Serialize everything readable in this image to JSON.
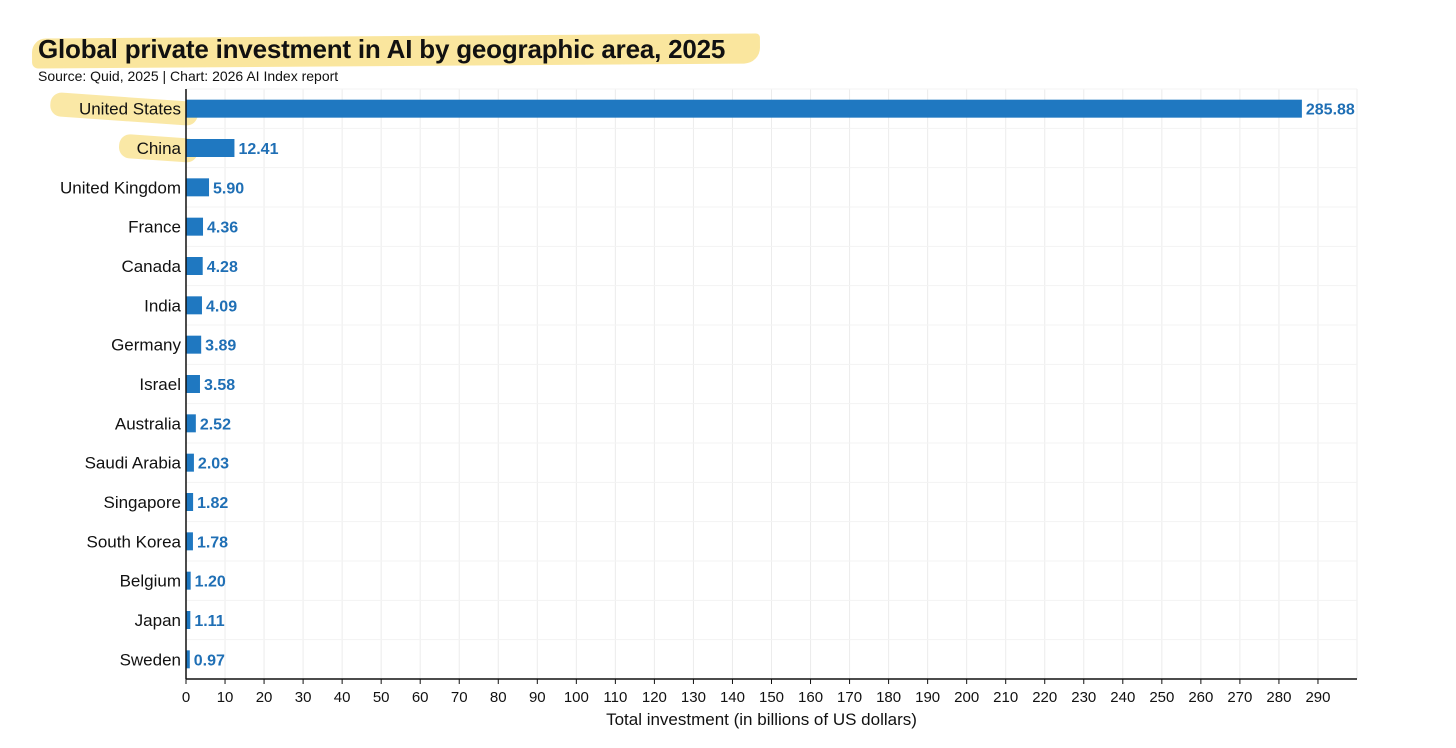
{
  "header": {
    "title": "Global private investment in AI by geographic area, 2025",
    "subtitle": "Source: Quid, 2025 | Chart: 2026 AI Index report"
  },
  "colors": {
    "bar": "#1f78c1",
    "label": "#1f6fb5",
    "grid": "#ececec",
    "highlight": "#f7d96a"
  },
  "chart_data": {
    "type": "bar",
    "orientation": "horizontal",
    "title": "Global private investment in AI by geographic area, 2025",
    "subtitle": "Source: Quid, 2025 | Chart: 2026 AI Index report",
    "xlabel": "Total investment (in billions of US dollars)",
    "ylabel": "",
    "xlim": [
      0,
      300
    ],
    "xticks": [
      0,
      10,
      20,
      30,
      40,
      50,
      60,
      70,
      80,
      90,
      100,
      110,
      120,
      130,
      140,
      150,
      160,
      170,
      180,
      190,
      200,
      210,
      220,
      230,
      240,
      250,
      260,
      270,
      280,
      290
    ],
    "grid": true,
    "highlighted_categories": [
      "United States",
      "China"
    ],
    "categories": [
      "United States",
      "China",
      "United Kingdom",
      "France",
      "Canada",
      "India",
      "Germany",
      "Israel",
      "Australia",
      "Saudi Arabia",
      "Singapore",
      "South Korea",
      "Belgium",
      "Japan",
      "Sweden"
    ],
    "values": [
      285.88,
      12.41,
      5.9,
      4.36,
      4.28,
      4.09,
      3.89,
      3.58,
      2.52,
      2.03,
      1.82,
      1.78,
      1.2,
      1.11,
      0.97
    ],
    "value_labels": [
      "285.88",
      "12.41",
      "5.90",
      "4.36",
      "4.28",
      "4.09",
      "3.89",
      "3.58",
      "2.52",
      "2.03",
      "1.82",
      "1.78",
      "1.20",
      "1.11",
      "0.97"
    ]
  }
}
